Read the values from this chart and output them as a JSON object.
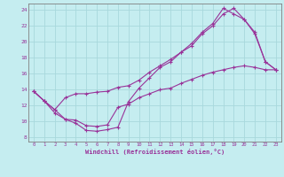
{
  "bg_color": "#c5edf0",
  "grid_color": "#a8d8dc",
  "line_color": "#993399",
  "xlabel": "Windchill (Refroidissement éolien,°C)",
  "xlim": [
    -0.5,
    23.5
  ],
  "ylim": [
    7.5,
    24.8
  ],
  "xticks": [
    0,
    1,
    2,
    3,
    4,
    5,
    6,
    7,
    8,
    9,
    10,
    11,
    12,
    13,
    14,
    15,
    16,
    17,
    18,
    19,
    20,
    21,
    22,
    23
  ],
  "yticks": [
    8,
    10,
    12,
    14,
    16,
    18,
    20,
    22,
    24
  ],
  "line1_x": [
    0,
    1,
    2,
    3,
    4,
    5,
    6,
    7,
    8,
    9,
    10,
    11,
    12,
    13,
    14,
    15,
    16,
    17,
    18,
    19,
    20,
    21,
    22,
    23
  ],
  "line1_y": [
    13.8,
    12.6,
    11.1,
    10.3,
    10.2,
    9.5,
    9.4,
    9.6,
    11.8,
    12.2,
    13.0,
    13.5,
    14.0,
    14.2,
    14.8,
    15.3,
    15.8,
    16.2,
    16.5,
    16.8,
    17.0,
    16.8,
    16.5,
    16.5
  ],
  "line2_x": [
    0,
    1,
    2,
    3,
    4,
    5,
    6,
    7,
    8,
    9,
    10,
    11,
    12,
    13,
    14,
    15,
    16,
    17,
    18,
    19,
    20,
    21,
    22,
    23
  ],
  "line2_y": [
    13.8,
    12.6,
    11.5,
    10.3,
    9.8,
    8.9,
    8.8,
    9.0,
    9.3,
    12.5,
    14.2,
    15.5,
    16.8,
    17.5,
    18.7,
    19.5,
    21.0,
    22.0,
    23.5,
    24.2,
    22.8,
    21.0,
    17.5,
    16.5
  ],
  "line3_x": [
    0,
    1,
    2,
    3,
    4,
    5,
    6,
    7,
    8,
    9,
    10,
    11,
    12,
    13,
    14,
    15,
    16,
    17,
    18,
    19,
    20,
    21,
    22,
    23
  ],
  "line3_y": [
    13.8,
    12.6,
    11.5,
    13.0,
    13.5,
    13.5,
    13.7,
    13.8,
    14.3,
    14.5,
    15.2,
    16.2,
    17.0,
    17.8,
    18.7,
    19.8,
    21.2,
    22.3,
    24.2,
    23.5,
    22.8,
    21.2,
    17.5,
    16.5
  ]
}
